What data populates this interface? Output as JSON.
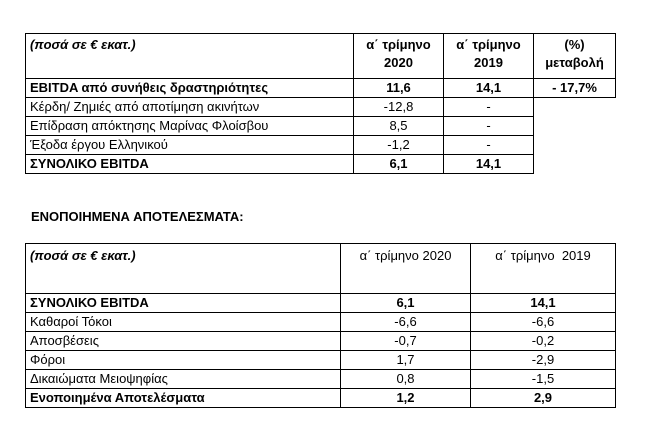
{
  "table1": {
    "header": [
      [
        "(ποσά σε € εκατ.)"
      ],
      [
        "α΄ τρίμηνο",
        "2020"
      ],
      [
        "α΄ τρίμηνο",
        "2019"
      ],
      [
        "(%)",
        "μεταβολή"
      ]
    ],
    "rows": [
      [
        "EBITDA από συνήθεις δραστηριότητες",
        "11,6",
        "14,1",
        "- 17,7%"
      ],
      [
        "Κέρδη/ Ζημιές από αποτίμηση ακινήτων",
        "-12,8",
        "-"
      ],
      [
        "Επίδραση απόκτησης Μαρίνας Φλοίσβου",
        "8,5",
        "-"
      ],
      [
        "Έξοδα έργου Ελληνικού",
        "-1,2",
        "-"
      ],
      [
        "ΣΥΝΟΛΙΚΟ EBITDA",
        "6,1",
        "14,1"
      ]
    ]
  },
  "section_title": "ΕΝΟΠΟΙΗΜΕΝΑ ΑΠΟΤΕΛΕΣΜΑΤΑ:",
  "table2": {
    "header": [
      "(ποσά σε € εκατ.)",
      "α΄ τρίμηνο 2020",
      "α΄ τρίμηνο  2019"
    ],
    "rows": [
      [
        "ΣΥΝΟΛΙΚΟ EBITDA",
        "6,1",
        "14,1"
      ],
      [
        "Καθαροί Τόκοι",
        "-6,6",
        "-6,6"
      ],
      [
        "Αποσβέσεις",
        "-0,7",
        "-0,2"
      ],
      [
        "Φόροι",
        "1,7",
        "-2,9"
      ],
      [
        "Δικαιώματα Μειοψηφίας",
        "0,8",
        "-1,5"
      ],
      [
        "Ενοποιημένα Αποτελέσματα",
        "1,2",
        "2,9"
      ]
    ]
  }
}
